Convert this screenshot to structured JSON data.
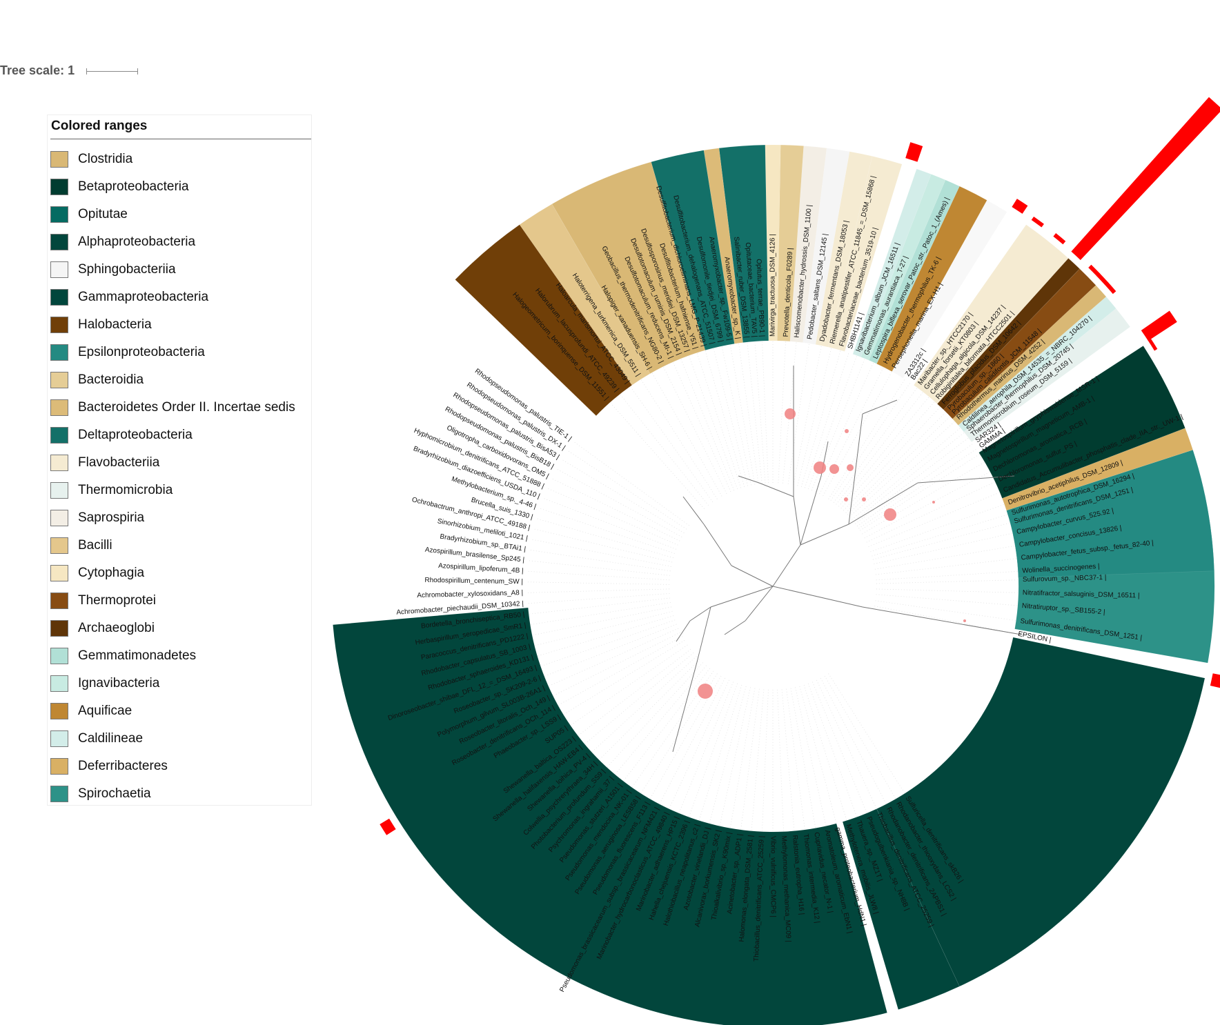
{
  "tree_scale": {
    "label": "Tree scale: 1"
  },
  "legend": {
    "title": "Colored ranges",
    "items": [
      {
        "label": "Clostridia",
        "color": "#d9b875"
      },
      {
        "label": "Betaproteobacteria",
        "color": "#013c30"
      },
      {
        "label": "Opitutae",
        "color": "#056b62"
      },
      {
        "label": "Alphaproteobacteria",
        "color": "#02463c"
      },
      {
        "label": "Sphingobacteriia",
        "color": "#f5f5f5"
      },
      {
        "label": "Gammaproteobacteria",
        "color": "#01463c"
      },
      {
        "label": "Halobacteria",
        "color": "#703f08"
      },
      {
        "label": "Epsilonproteobacteria",
        "color": "#248a82"
      },
      {
        "label": "Bacteroidia",
        "color": "#e5cd96"
      },
      {
        "label": "Bacteroidetes Order II. Incertae sedis",
        "color": "#dcbb78"
      },
      {
        "label": "Deltaproteobacteria",
        "color": "#137068"
      },
      {
        "label": "Flavobacteriia",
        "color": "#f5ebd2"
      },
      {
        "label": "Thermomicrobia",
        "color": "#e7f1ee"
      },
      {
        "label": "Saprospiria",
        "color": "#f3eee5"
      },
      {
        "label": "Bacilli",
        "color": "#e4c78c"
      },
      {
        "label": "Cytophagia",
        "color": "#f6e7c2"
      },
      {
        "label": "Thermoprotei",
        "color": "#874c13"
      },
      {
        "label": "Archaeoglobi",
        "color": "#5f3508"
      },
      {
        "label": "Gemmatimonadetes",
        "color": "#b1e0d6"
      },
      {
        "label": "Ignavibacteria",
        "color": "#c8ebe2"
      },
      {
        "label": "Aquificae",
        "color": "#bf8733"
      },
      {
        "label": "Caldilineae",
        "color": "#d3ede9"
      },
      {
        "label": "Deferribacteres",
        "color": "#d9b064"
      },
      {
        "label": "Spirochaetia",
        "color": "#2d9288"
      }
    ]
  },
  "tree": {
    "ranges": [
      {
        "start": 185,
        "end": 285,
        "color": "#02463c"
      },
      {
        "start": 286.5,
        "end": 295,
        "color": "#01463c"
      },
      {
        "start": 295,
        "end": 348,
        "color": "#02463c"
      },
      {
        "start": 350,
        "end": 372,
        "color": "#2d9288"
      },
      {
        "start": 2,
        "end": 18,
        "color": "#248a82"
      },
      {
        "start": 18,
        "end": 21,
        "color": "#d9b064"
      },
      {
        "start": 21,
        "end": 33,
        "color": "#013c30"
      },
      {
        "start": 36,
        "end": 39,
        "color": "#e7f1ee"
      },
      {
        "start": 39,
        "end": 41,
        "color": "#d3ede9"
      },
      {
        "start": 41,
        "end": 43,
        "color": "#d9b875"
      },
      {
        "start": 43,
        "end": 46,
        "color": "#874c13"
      },
      {
        "start": 46,
        "end": 48,
        "color": "#5f3508"
      },
      {
        "start": 48,
        "end": 55,
        "color": "#f5ebd2"
      },
      {
        "start": 58,
        "end": 61,
        "color": "#f8f8f8"
      },
      {
        "start": 61,
        "end": 65,
        "color": "#bf8733"
      },
      {
        "start": 65,
        "end": 67,
        "color": "#b1e0d6"
      },
      {
        "start": 67,
        "end": 69,
        "color": "#c8ebe2"
      },
      {
        "start": 69,
        "end": 71,
        "color": "#d3ede9"
      },
      {
        "start": 73,
        "end": 77,
        "color": "#f5ebd2"
      },
      {
        "start": 77,
        "end": 80,
        "color": "#f5ebd2"
      },
      {
        "start": 80,
        "end": 83,
        "color": "#f5f5f5"
      },
      {
        "start": 83,
        "end": 86,
        "color": "#f3eee5"
      },
      {
        "start": 86,
        "end": 89,
        "color": "#e5cd96"
      },
      {
        "start": 89,
        "end": 91,
        "color": "#f6e7c2"
      },
      {
        "start": 91,
        "end": 97,
        "color": "#137068"
      },
      {
        "start": 97,
        "end": 99,
        "color": "#dcbb78"
      },
      {
        "start": 99,
        "end": 106,
        "color": "#137068"
      },
      {
        "start": 106,
        "end": 120,
        "color": "#d9b875"
      },
      {
        "start": 120,
        "end": 125,
        "color": "#e4c78c"
      },
      {
        "start": 125,
        "end": 136,
        "color": "#703f08"
      }
    ],
    "labels": [
      {
        "text": "Wolinella_succinogenes |",
        "angle": 3.5
      },
      {
        "text": "Campylobacter_fetus_subsp._fetus_82-40 |",
        "angle": 6.5
      },
      {
        "text": "Campylobacter_concisus_13826 |",
        "angle": 9.5
      },
      {
        "text": "Campylobacter_curvus_525.92 |",
        "angle": 12.5
      },
      {
        "text": "Sulfurimonas_denitrificans_DSM_1251 |",
        "angle": 15
      },
      {
        "text": "Sulfurimonas_autotrophica_DSM_16294 |",
        "angle": 17
      },
      {
        "text": "Denitrovibrio_acetiphilus_DSM_12809 |",
        "angle": 19.5
      },
      {
        "text": "Candidatus_Accumulibacter_phosphatis_clade_IIA_str._UW-1 |",
        "angle": 22.5
      },
      {
        "text": "Dechloromonas_sulfur_PS |",
        "angle": 25.2
      },
      {
        "text": "Dechloromonas_aromatica_RCB |",
        "angle": 27.8
      },
      {
        "text": "Magnetospirillum_magneticum_AMB-1 |",
        "angle": 30.4
      },
      {
        "text": "Magnetospirillum_gryphiswaldense_MSR-1 |",
        "angle": 32.6
      },
      {
        "text": "GAMMA |",
        "angle": 34
      },
      {
        "text": "SAR324 |",
        "angle": 35.5
      },
      {
        "text": "Thermomicrobium_roseum_DSM_5159 |",
        "angle": 37.2
      },
      {
        "text": "Sphaerobacter_thermophilus_DSM_20745 |",
        "angle": 38.8
      },
      {
        "text": "Caldilinea_aerophila_DSM_14535_=_NBRC_104270 |",
        "angle": 40.2
      },
      {
        "text": "Rhodothermus_marinus_DSM_4252 |",
        "angle": 42.2
      },
      {
        "text": "Pyrobaculum_calidifontis_JCM_11548 |",
        "angle": 43.8
      },
      {
        "text": "Pyrobaculum_sp._1860 |",
        "angle": 45.2
      },
      {
        "text": "Ferroglobus_placidus_DSM_10642 |",
        "angle": 47
      },
      {
        "text": "Robiginitalea_biformata_HTCC2501 |",
        "angle": 48.8
      },
      {
        "text": "Cellulophaga_algicola_DSM_14237 |",
        "angle": 50.5
      },
      {
        "text": "Gramella_forsetii_KT0803 |",
        "angle": 52.3
      },
      {
        "text": "Maribacter_sp._HTCC2170 |",
        "angle": 54
      },
      {
        "text": "Bac22 |",
        "angle": 56
      },
      {
        "text": "ZA3312c |",
        "angle": 57.5
      },
      {
        "text": "Persephonella_marina_EX-H1 |",
        "angle": 61
      },
      {
        "text": "Hydrogenobacter_thermophilus_TK-6 |",
        "angle": 63.2
      },
      {
        "text": "Leptospira_biflexa_serovar_Patoc_str._Patoc_1_(Ames) |",
        "angle": 65.8
      },
      {
        "text": "Gemmatimonas_aurantiaca_T-27 |",
        "angle": 68
      },
      {
        "text": "Ignavibacterium_album_JCM_16511 |",
        "angle": 70
      },
      {
        "text": "SHBH1141 |",
        "angle": 72
      },
      {
        "text": "Flavobacteriaceae_bacterium_3519-10 |",
        "angle": 74
      },
      {
        "text": "Riemerella_anatipestifer_ATCC_11845_=_DSM_15868 |",
        "angle": 76.2
      },
      {
        "text": "Dyadobacter_fermentans_DSM_18053 |",
        "angle": 78.6
      },
      {
        "text": "Pedobacter_saltans_DSM_12145 |",
        "angle": 81.5
      },
      {
        "text": "Haliscomenobacter_hydrossis_DSM_1100 |",
        "angle": 84.5
      },
      {
        "text": "Prevotella_denticola_F0289 |",
        "angle": 87
      },
      {
        "text": "Marivirga_tractuosa_DSM_4126 |",
        "angle": 90
      },
      {
        "text": "Opitutus_terrae_PB90-1 |",
        "angle": 92.5
      },
      {
        "text": "Opitutaceae_bacterium_TAV5 |",
        "angle": 94.2
      },
      {
        "text": "Salinibacter_ruber_DSM_13855 |",
        "angle": 96
      },
      {
        "text": "Anaeromyxobacter_sp._K |",
        "angle": 98
      },
      {
        "text": "Anaeromyxobacter_sp._Fw109-5 |",
        "angle": 100
      },
      {
        "text": "Desulfomonile_tiedjei_DSM_6799 |",
        "angle": 102
      },
      {
        "text": "Desulfitobacterium_dehalogenans_ATCC_51507 |",
        "angle": 104
      },
      {
        "text": "Desulfitobacterium_dichloroeliminans_LMG_P-21439 |",
        "angle": 106
      },
      {
        "text": "Desulfitobacterium_hafniense_Y51 |",
        "angle": 108
      },
      {
        "text": "Desulfosporosinus_meridiei_DSM_13257 |",
        "angle": 110
      },
      {
        "text": "Desulfotomaculum_ruminis_DSM_2154 |",
        "angle": 112
      },
      {
        "text": "Desulfotomaculum_reducens_MI-1 |",
        "angle": 114
      },
      {
        "text": "Geobacillus_thermodenitrificans_NG80-2 |",
        "angle": 116.5
      },
      {
        "text": "Halopiger_xanaduensis_SH-6 |",
        "angle": 119.5
      },
      {
        "text": "Haloterrigena_turkmenica_DSM_5511 |",
        "angle": 122.5
      },
      {
        "text": "Haloarcula_marismortui_ATCC_43049 |",
        "angle": 125.5
      },
      {
        "text": "Halorubrum_lacusprofundi_ATCC_49239 |",
        "angle": 128.5
      },
      {
        "text": "Halogeometricum_borinquense_DSM_11551 |",
        "angle": 131.5
      },
      {
        "text": "Rhodopseudomonas_palustris_TIE-1 |",
        "angle": 144
      },
      {
        "text": "Rhodopseudomonas_palustris_DX-1 |",
        "angle": 146.5
      },
      {
        "text": "Rhodopseudomonas_palustris_BisA53 |",
        "angle": 149
      },
      {
        "text": "Rhodopseudomonas_palustris_BisB18 |",
        "angle": 151.5
      },
      {
        "text": "Oligotropha_carboxidovorans_OM5 |",
        "angle": 154
      },
      {
        "text": "Hyphomicrobium_denitrificans_ATCC_51888 |",
        "angle": 156.5
      },
      {
        "text": "Bradyrhizobium_diazoefficiens_USDA_110 |",
        "angle": 159
      },
      {
        "text": "Methylobacterium_sp._4-46 |",
        "angle": 161.5
      },
      {
        "text": "Brucella_suis_1330 |",
        "angle": 164
      },
      {
        "text": "Ochrobactrum_anthropi_ATCC_49188 |",
        "angle": 166.5
      },
      {
        "text": "Sinorhizobium_meliloti_1021 |",
        "angle": 169
      },
      {
        "text": "Bradyrhizobium_sp._BTAi1 |",
        "angle": 171.5
      },
      {
        "text": "Azospirillum_brasilense_Sp245 |",
        "angle": 174
      },
      {
        "text": "Azospirillum_lipoferum_4B |",
        "angle": 176.5
      },
      {
        "text": "Rhodospirillum_centenum_SW |",
        "angle": 179
      },
      {
        "text": "Achromobacter_xylosoxidans_A8 |",
        "angle": 181.5
      },
      {
        "text": "Achromobacter_piechaudii_DSM_10342 |",
        "angle": 184
      },
      {
        "text": "Bordetella_bronchiseptica_RB50 |",
        "angle": 186.5
      },
      {
        "text": "Herbaspirillum_seropedicae_SmR1 |",
        "angle": 189
      },
      {
        "text": "Paracoccus_denitrificans_PD1222 |",
        "angle": 191.5
      },
      {
        "text": "Rhodobacter_capsulatus_SB_1003 |",
        "angle": 194
      },
      {
        "text": "Rhodobacter_sphaeroides_KD131 |",
        "angle": 196.5
      },
      {
        "text": "Dinoroseobacter_shibae_DFL_12_=_DSM_16493 |",
        "angle": 199
      },
      {
        "text": "Roseobacter_sp._SK209-2-6 |",
        "angle": 201.5
      },
      {
        "text": "Polymorphum_gilvum_SL003B-26A1 |",
        "angle": 204
      },
      {
        "text": "Roseobacter_litoralis_Och_149 |",
        "angle": 206.5
      },
      {
        "text": "Roseobacter_denitrificans_OCh_114 |",
        "angle": 209
      },
      {
        "text": "Phaeobacter_sp._LSS9 |",
        "angle": 211.5
      },
      {
        "text": "SUP05 |",
        "angle": 214.5
      },
      {
        "text": "Shewanella_baltica_OS223 |",
        "angle": 217.5
      },
      {
        "text": "Shewanella_halifaxensis_HAW-EB4 |",
        "angle": 220
      },
      {
        "text": "Shewanella_loihica_PV-4 |",
        "angle": 222.5
      },
      {
        "text": "Colwellia_psychrerythraea_34H |",
        "angle": 225
      },
      {
        "text": "Photobacterium_profundum_SS9 |",
        "angle": 227.5
      },
      {
        "text": "Psychromonas_ingrahamii_37 |",
        "angle": 230
      },
      {
        "text": "Pseudomonas_stutzeri_A1501 |",
        "angle": 232.5
      },
      {
        "text": "Pseudomonas_mendocina_NK-01 |",
        "angle": 235
      },
      {
        "text": "Pseudomonas_aeruginosa_LESB58 |",
        "angle": 237.5
      },
      {
        "text": "Pseudomonas_fluorescens_F113 |",
        "angle": 240
      },
      {
        "text": "Pseudomonas_brassicacearum_subsp._brassicacearum_NFM421 |",
        "angle": 242.5
      },
      {
        "text": "Marinobacter_hydrocarbonoclasticus_ATCC_49840 |",
        "angle": 245
      },
      {
        "text": "Marinobacter_adhaerens_HP15 |",
        "angle": 247.5
      },
      {
        "text": "Hahella_chejuensis_KCTC_2396 |",
        "angle": 250
      },
      {
        "text": "Halothiobacillus_neapolitanus_c2 |",
        "angle": 252.5
      },
      {
        "text": "Azotobacter_vinelandii_DJ |",
        "angle": 255
      },
      {
        "text": "Alcanivorax_borkumensis_SK2 |",
        "angle": 257.5
      },
      {
        "text": "Thioalkalivibrio_sp._K90mix |",
        "angle": 260
      },
      {
        "text": "Acinetobacter_sp._ADP1 |",
        "angle": 262.5
      },
      {
        "text": "Halomonas_elongata_DSM_2581 |",
        "angle": 265
      },
      {
        "text": "Thiobacillus_denitrificans_ATCC_25259 |",
        "angle": 267.5
      },
      {
        "text": "Vibrio_vulnificus_CMCP6 |",
        "angle": 270
      },
      {
        "text": "Methylomonas_methanica_MC09 |",
        "angle": 272.5
      },
      {
        "text": "Ralstonia_eutropha_H16 |",
        "angle": 275
      },
      {
        "text": "Thiomonas_intermedia_K12 |",
        "angle": 277.5
      },
      {
        "text": "Cupriavidus_necator_N-1 |",
        "angle": 280
      },
      {
        "text": "Aromatoleum_aromaticum_EbN1 |",
        "angle": 282.5
      },
      {
        "text": "gamma_proteobacterium_HdN1 |",
        "angle": 285
      },
      {
        "text": "Methylotenera_mobilis_JLW8 |",
        "angle": 287.5
      },
      {
        "text": "Thauera_sp._MZ1T |",
        "angle": 290
      },
      {
        "text": "Pseudogulbenkiania_sp._NH8B |",
        "angle": 292.5
      },
      {
        "text": "Thiobacillus_denitrificans_ATCC_25259 |",
        "angle": 295
      },
      {
        "text": "Rhodanobacter_denitrificans_2APBS1 |",
        "angle": 297.5
      },
      {
        "text": "Rhodanobacter_thiooxydans_LCS2 |",
        "angle": 300
      },
      {
        "text": "Sulfuricella_denitrificans_skB26 |",
        "angle": 302.5
      },
      {
        "text": "Nitratiruptor_sp._SB155-2 |",
        "angle": 355.5
      },
      {
        "text": "Nitratifractor_salsuginis_DSM_16511 |",
        "angle": 358.5
      },
      {
        "text": "Sulfurovum_sp._NBC37-1 |",
        "angle": 361.5
      },
      {
        "text": "Sulfurimonas_denitrificans_DSM_1251 |",
        "angle": 352
      },
      {
        "text": "EPSILON |",
        "angle": 349
      }
    ],
    "bars": [
      {
        "angle": 72,
        "length": 24
      },
      {
        "angle": 57,
        "length": 14
      },
      {
        "angle": 54,
        "length": 6
      },
      {
        "angle": 50.5,
        "length": 6
      },
      {
        "angle": 47.5,
        "length": 300
      },
      {
        "angle": 44.5,
        "length": 6
      },
      {
        "angle": 43,
        "length": 6
      },
      {
        "angle": 41.5,
        "length": 6
      },
      {
        "angle": 34,
        "length": 50
      },
      {
        "angle": 32.5,
        "length": 5
      },
      {
        "angle": 348,
        "length": 20
      },
      {
        "angle": 212,
        "length": 16
      }
    ],
    "bootstrap_nodes": [
      {
        "x": 1145,
        "y": 600,
        "r": 8
      },
      {
        "x": 1188,
        "y": 678,
        "r": 9
      },
      {
        "x": 1209,
        "y": 680,
        "r": 7
      },
      {
        "x": 1232,
        "y": 678,
        "r": 5
      },
      {
        "x": 1290,
        "y": 746,
        "r": 9
      },
      {
        "x": 1022,
        "y": 1002,
        "r": 11
      },
      {
        "x": 1227,
        "y": 625,
        "r": 3
      },
      {
        "x": 1226,
        "y": 724,
        "r": 3
      },
      {
        "x": 1252,
        "y": 724,
        "r": 3
      },
      {
        "x": 1353,
        "y": 728,
        "r": 2
      },
      {
        "x": 1398,
        "y": 900,
        "r": 2
      }
    ]
  }
}
